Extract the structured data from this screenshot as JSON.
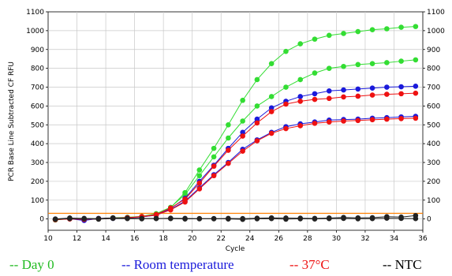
{
  "chart_data": {
    "type": "line",
    "xlabel": "Cycle",
    "ylabel": "PCR Base Line Subtracted CF RFU",
    "xlim": [
      10,
      36
    ],
    "ylim": [
      -60,
      1100
    ],
    "x_ticks": [
      10,
      12,
      14,
      16,
      18,
      20,
      22,
      24,
      26,
      28,
      30,
      32,
      34,
      36
    ],
    "y_ticks": [
      0,
      100,
      200,
      300,
      400,
      500,
      600,
      700,
      800,
      900,
      1000,
      1100
    ],
    "grid": true,
    "threshold": 30,
    "x": [
      10.5,
      11.5,
      12.5,
      13.5,
      14.5,
      15.5,
      16.5,
      17.5,
      18.5,
      19.5,
      20.5,
      21.5,
      22.5,
      23.5,
      24.5,
      25.5,
      26.5,
      27.5,
      28.5,
      29.5,
      30.5,
      31.5,
      32.5,
      33.5,
      34.5,
      35.5
    ],
    "series": [
      {
        "legend_index": 0,
        "color": "#33dd33",
        "values": [
          -5,
          2,
          -3,
          0,
          5,
          8,
          12,
          25,
          60,
          140,
          260,
          375,
          500,
          630,
          740,
          825,
          890,
          930,
          955,
          975,
          985,
          995,
          1005,
          1010,
          1018,
          1022
        ]
      },
      {
        "legend_index": 0,
        "color": "#33dd33",
        "values": [
          -3,
          3,
          -1,
          2,
          6,
          9,
          14,
          28,
          62,
          130,
          230,
          330,
          430,
          520,
          600,
          650,
          700,
          740,
          775,
          800,
          810,
          820,
          825,
          830,
          838,
          845
        ]
      },
      {
        "legend_index": 1,
        "color": "#1a1adb",
        "values": [
          -2,
          1,
          -8,
          3,
          4,
          6,
          10,
          22,
          55,
          110,
          200,
          285,
          375,
          460,
          530,
          590,
          625,
          650,
          665,
          680,
          685,
          690,
          695,
          700,
          702,
          705
        ]
      },
      {
        "legend_index": 1,
        "color": "#1a1adb",
        "values": [
          -1,
          2,
          -5,
          1,
          3,
          7,
          11,
          20,
          50,
          95,
          165,
          235,
          300,
          370,
          420,
          460,
          490,
          505,
          515,
          525,
          528,
          530,
          535,
          538,
          542,
          545
        ]
      },
      {
        "legend_index": 2,
        "color": "#ee1111",
        "values": [
          -4,
          0,
          -2,
          2,
          5,
          7,
          13,
          24,
          58,
          105,
          190,
          280,
          365,
          440,
          510,
          570,
          610,
          625,
          635,
          640,
          648,
          652,
          658,
          662,
          665,
          668
        ]
      },
      {
        "legend_index": 2,
        "color": "#ee1111",
        "values": [
          -3,
          1,
          -1,
          0,
          4,
          6,
          12,
          21,
          48,
          90,
          160,
          230,
          295,
          360,
          415,
          455,
          480,
          495,
          508,
          515,
          520,
          523,
          527,
          530,
          533,
          535
        ]
      },
      {
        "legend_index": 3,
        "color": "#222222",
        "values": [
          -2,
          2,
          1,
          -1,
          3,
          2,
          1,
          3,
          2,
          0,
          1,
          2,
          0,
          -2,
          1,
          2,
          -1,
          1,
          0,
          2,
          3,
          1,
          2,
          4,
          3,
          2
        ]
      },
      {
        "legend_index": 3,
        "color": "#222222",
        "values": [
          0,
          5,
          3,
          2,
          6,
          4,
          3,
          2,
          4,
          3,
          2,
          1,
          3,
          2,
          4,
          6,
          5,
          4,
          3,
          5,
          8,
          6,
          7,
          12,
          10,
          18
        ]
      }
    ],
    "legend": [
      {
        "label": "-- Day 0",
        "color": "#22bb22"
      },
      {
        "label": "-- Room temperature",
        "color": "#1a1adb"
      },
      {
        "label": "-- 37°C",
        "color": "#ee1111"
      },
      {
        "label": "-- NTC",
        "color": "#000000"
      }
    ],
    "legend_position": "bottom"
  }
}
